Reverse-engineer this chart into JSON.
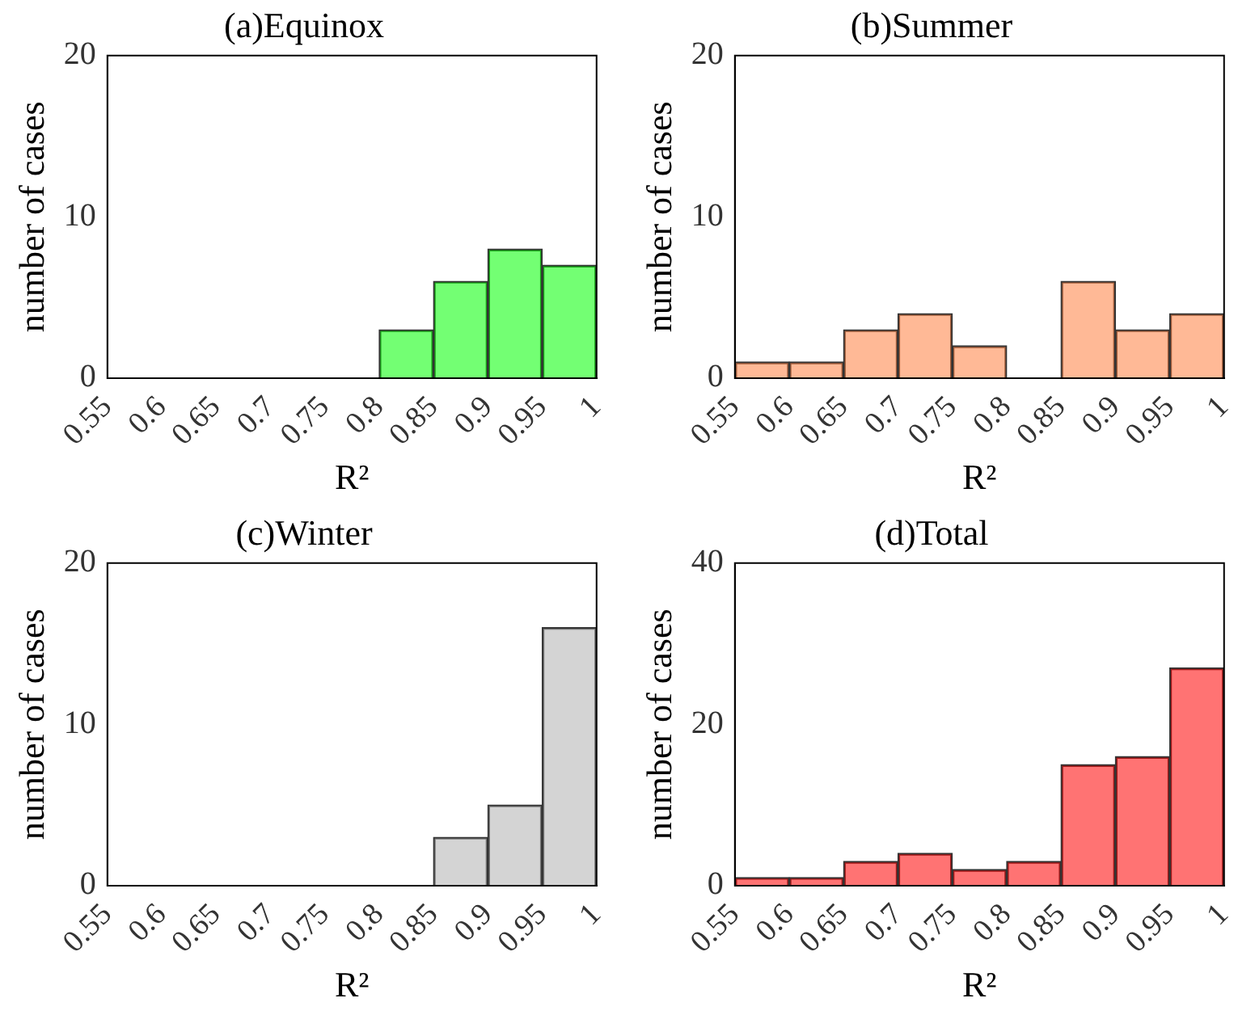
{
  "chart_data": [
    {
      "type": "histogram",
      "title": "(a)Equinox",
      "xlabel": "R²",
      "ylabel": "number of cases",
      "bins": [
        0.55,
        0.6,
        0.65,
        0.7,
        0.75,
        0.8,
        0.85,
        0.9,
        0.95,
        1
      ],
      "values": [
        0,
        0,
        0,
        0,
        0,
        3,
        6,
        8,
        7
      ],
      "color": "#00ff00",
      "xlim": [
        0.55,
        1
      ],
      "xticks": [
        0.55,
        0.6,
        0.65,
        0.7,
        0.75,
        0.8,
        0.85,
        0.9,
        0.95,
        1
      ],
      "ylim": [
        0,
        20
      ],
      "yticks": [
        0,
        10,
        20
      ],
      "grid": false,
      "legend": false
    },
    {
      "type": "histogram",
      "title": "(b)Summer",
      "xlabel": "R²",
      "ylabel": "number of cases",
      "bins": [
        0.55,
        0.6,
        0.65,
        0.7,
        0.75,
        0.8,
        0.85,
        0.9,
        0.95,
        1
      ],
      "values": [
        1,
        1,
        3,
        4,
        2,
        0,
        6,
        3,
        4
      ],
      "color": "#ff8040",
      "xlim": [
        0.55,
        1
      ],
      "xticks": [
        0.55,
        0.6,
        0.65,
        0.7,
        0.75,
        0.8,
        0.85,
        0.9,
        0.95,
        1
      ],
      "ylim": [
        0,
        20
      ],
      "yticks": [
        0,
        10,
        20
      ],
      "grid": false,
      "legend": false
    },
    {
      "type": "histogram",
      "title": "(c)Winter",
      "xlabel": "R²",
      "ylabel": "number of cases",
      "bins": [
        0.55,
        0.6,
        0.65,
        0.7,
        0.75,
        0.8,
        0.85,
        0.9,
        0.95,
        1
      ],
      "values": [
        0,
        0,
        0,
        0,
        0,
        0,
        3,
        5,
        16
      ],
      "color": "#b0b0b0",
      "xlim": [
        0.55,
        1
      ],
      "xticks": [
        0.55,
        0.6,
        0.65,
        0.7,
        0.75,
        0.8,
        0.85,
        0.9,
        0.95,
        1
      ],
      "ylim": [
        0,
        20
      ],
      "yticks": [
        0,
        10,
        20
      ],
      "grid": false,
      "legend": false
    },
    {
      "type": "histogram",
      "title": "(d)Total",
      "xlabel": "R²",
      "ylabel": "number of cases",
      "bins": [
        0.55,
        0.6,
        0.65,
        0.7,
        0.75,
        0.8,
        0.85,
        0.9,
        0.95,
        1
      ],
      "values": [
        1,
        1,
        3,
        4,
        2,
        3,
        15,
        16,
        27
      ],
      "color": "#ff0000",
      "xlim": [
        0.55,
        1
      ],
      "xticks": [
        0.55,
        0.6,
        0.65,
        0.7,
        0.75,
        0.8,
        0.85,
        0.9,
        0.95,
        1
      ],
      "ylim": [
        0,
        40
      ],
      "yticks": [
        0,
        20,
        40
      ],
      "grid": false,
      "legend": false
    }
  ]
}
